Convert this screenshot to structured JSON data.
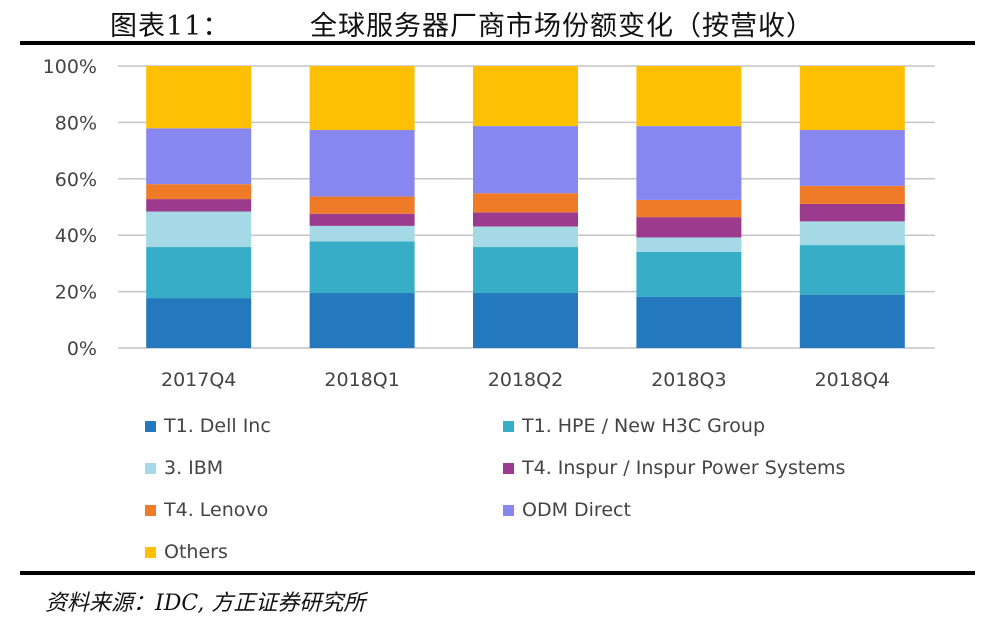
{
  "header": {
    "figure_no": "图表11：",
    "title": "全球服务器厂商市场份额变化（按营收）"
  },
  "footer": {
    "source": "资料来源：IDC, 方正证券研究所"
  },
  "chart_data": {
    "type": "bar",
    "stacked": true,
    "title": "全球服务器厂商市场份额变化（按营收）",
    "categories": [
      "2017Q4",
      "2018Q1",
      "2018Q2",
      "2018Q3",
      "2018Q4"
    ],
    "ylim": [
      0,
      100
    ],
    "yticks": [
      "0%",
      "20%",
      "40%",
      "60%",
      "80%",
      "100%"
    ],
    "grid": true,
    "legend_position": "bottom",
    "series": [
      {
        "name": "T1. Dell Inc",
        "color": "#2478bd",
        "values": [
          17.7,
          19.5,
          19.5,
          18.1,
          18.9
        ]
      },
      {
        "name": "T1. HPE / New H3C Group",
        "color": "#37adc8",
        "values": [
          18.1,
          18.3,
          16.3,
          16.0,
          17.6
        ]
      },
      {
        "name": "3. IBM",
        "color": "#a5d9e6",
        "values": [
          12.6,
          5.5,
          7.3,
          5.1,
          8.4
        ]
      },
      {
        "name": "T4. Inspur / Inspur Power Systems",
        "color": "#9c3b8e",
        "values": [
          4.4,
          4.3,
          5.0,
          7.2,
          6.2
        ]
      },
      {
        "name": "T4. Lenovo",
        "color": "#ef7b28",
        "values": [
          5.3,
          6.1,
          6.8,
          6.1,
          6.4
        ]
      },
      {
        "name": "ODM Direct",
        "color": "#8887f0",
        "values": [
          19.8,
          23.6,
          23.8,
          26.2,
          19.8
        ]
      },
      {
        "name": "Others",
        "color": "#fdc004",
        "values": [
          22.1,
          22.7,
          21.3,
          21.3,
          22.7
        ]
      }
    ]
  }
}
